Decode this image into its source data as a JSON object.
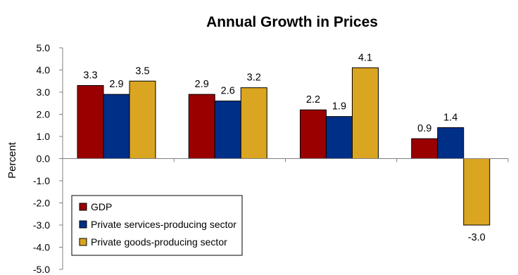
{
  "chart_data": {
    "type": "bar",
    "title": "Annual Growth in Prices",
    "ylabel": "Percent",
    "xlabel": "",
    "ylim": [
      -5.0,
      5.0
    ],
    "ytick_step": 1.0,
    "categories": [
      "",
      "",
      "",
      ""
    ],
    "series": [
      {
        "name": "GDP",
        "color": "#990000",
        "values": [
          3.3,
          2.9,
          2.2,
          0.9
        ]
      },
      {
        "name": "Private services-producing sector",
        "color": "#002F87",
        "values": [
          2.9,
          2.6,
          1.9,
          1.4
        ]
      },
      {
        "name": "Private goods-producing sector",
        "color": "#DAA520",
        "values": [
          3.5,
          3.2,
          4.1,
          -3.0
        ]
      }
    ],
    "legend_position": "bottom-left",
    "grid": false
  }
}
